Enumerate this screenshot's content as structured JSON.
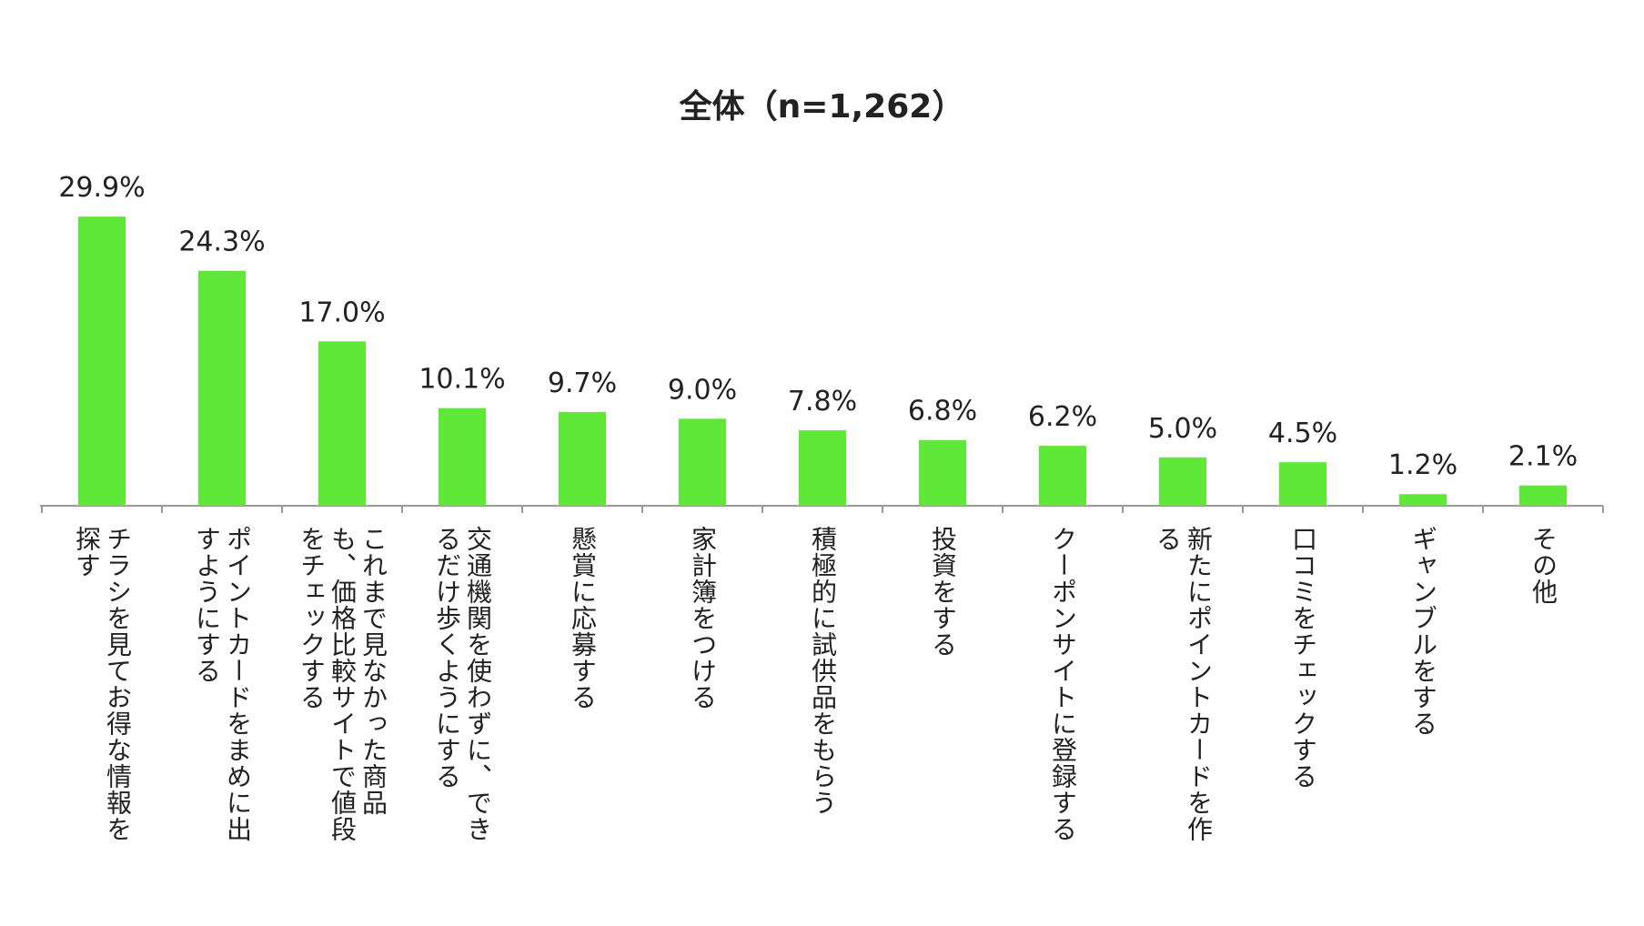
{
  "chart_data": {
    "type": "bar",
    "title": "全体（n=1,262）",
    "xlabel": "",
    "ylabel": "",
    "ylim": [
      0,
      30
    ],
    "grid": false,
    "value_suffix": "%",
    "bar_color": "#5fe83a",
    "axis_color": "#999999",
    "categories": [
      "チラシを見てお得な情報を探す",
      "ポイントカードをまめに出すようにする",
      "これまで見なかった商品も、価格比較サイトで値段をチェックする",
      "交通機関を使わずに、できるだけ歩くようにする",
      "懸賞に応募する",
      "家計簿をつける",
      "積極的に試供品をもらう",
      "投資をする",
      "クーポンサイトに登録する",
      "新たにポイントカードを作る",
      "口コミをチェックする",
      "ギャンブルをする",
      "その他"
    ],
    "values": [
      29.9,
      24.3,
      17.0,
      10.1,
      9.7,
      9.0,
      7.8,
      6.8,
      6.2,
      5.0,
      4.5,
      1.2,
      2.1
    ],
    "data_labels": [
      "29.9%",
      "24.3%",
      "17.0%",
      "10.1%",
      "9.7%",
      "9.0%",
      "7.8%",
      "6.8%",
      "6.2%",
      "5.0%",
      "4.5%",
      "1.2%",
      "2.1%"
    ]
  }
}
